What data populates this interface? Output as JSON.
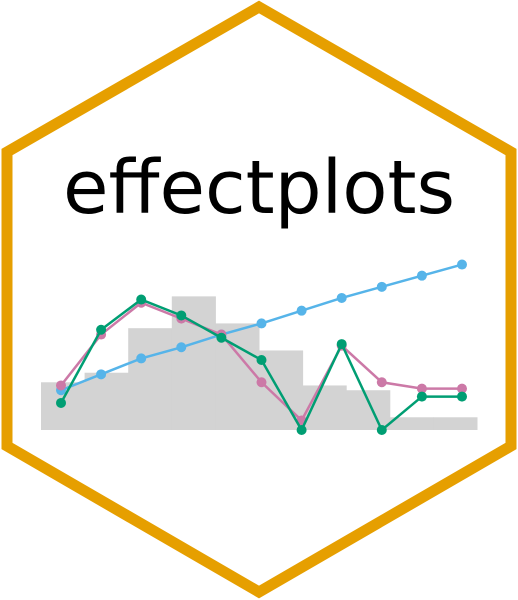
{
  "sticker": {
    "title": "effectplots",
    "colors": {
      "border": "#e69f00",
      "background": "#ffffff",
      "bars": "#d3d3d3",
      "series_blue": "#56b4e9",
      "series_pink": "#cc79a7",
      "series_green": "#009e73"
    }
  },
  "chart_data": {
    "type": "line",
    "x": [
      1,
      2,
      3,
      4,
      5,
      6,
      7,
      8,
      9,
      10,
      11
    ],
    "bars": [
      0.3,
      0.36,
      0.64,
      0.84,
      0.67,
      0.5,
      0.28,
      0.25,
      0.08,
      0.08
    ],
    "series": [
      {
        "color": "#56b4e9",
        "values": [
          0.25,
          0.35,
          0.45,
          0.52,
          0.6,
          0.67,
          0.75,
          0.83,
          0.9,
          0.97,
          1.04
        ]
      },
      {
        "color": "#cc79a7",
        "values": [
          0.28,
          0.6,
          0.8,
          0.7,
          0.6,
          0.3,
          0.06,
          0.53,
          0.3,
          0.26,
          0.26
        ]
      },
      {
        "color": "#009e73",
        "values": [
          0.17,
          0.63,
          0.82,
          0.72,
          0.58,
          0.44,
          0.0,
          0.54,
          0.0,
          0.21,
          0.21
        ]
      }
    ],
    "ylim": [
      0,
      1.1
    ],
    "grid": false,
    "legend": "none"
  }
}
